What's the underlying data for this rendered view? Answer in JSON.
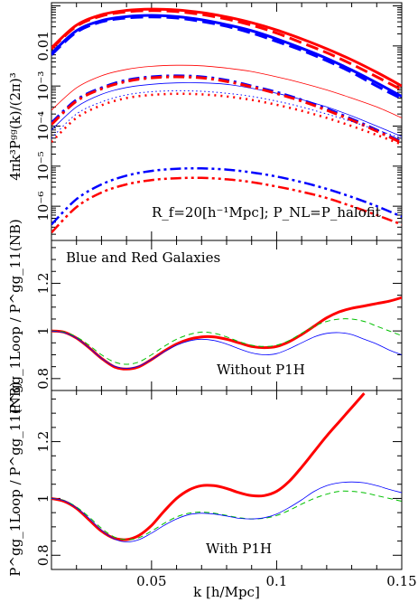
{
  "chart_data": [
    {
      "type": "line",
      "panel": "top",
      "ylabel": "4πk³Pᵍᵍ(k)/(2π)³",
      "yscale": "log",
      "xlim": [
        0.01,
        0.15
      ],
      "ylim": [
        1.4e-07,
        0.12
      ],
      "ytick_labels": [
        "10⁻⁶",
        "10⁻⁵",
        "10⁻⁴",
        "10⁻³",
        "0.01"
      ],
      "ytick_values": [
        1e-06,
        1e-05,
        0.0001,
        0.001,
        0.01
      ],
      "annotation": "R_f=20[h⁻¹Mpc]; P_NL=P_halofit",
      "series": [
        {
          "color": "#ff0000",
          "style": "solid-thick",
          "x": [
            0.01,
            0.02,
            0.03,
            0.04,
            0.05,
            0.06,
            0.07,
            0.08,
            0.09,
            0.1,
            0.11,
            0.12,
            0.13,
            0.14,
            0.15
          ],
          "y": [
            0.009,
            0.033,
            0.06,
            0.077,
            0.083,
            0.079,
            0.068,
            0.053,
            0.038,
            0.025,
            0.015,
            0.0085,
            0.0045,
            0.0022,
            0.001
          ]
        },
        {
          "color": "#ff0000",
          "style": "dashed-thick",
          "x": [
            0.01,
            0.02,
            0.03,
            0.04,
            0.05,
            0.06,
            0.07,
            0.08,
            0.09,
            0.1,
            0.11,
            0.12,
            0.13,
            0.14,
            0.15
          ],
          "y": [
            0.0085,
            0.031,
            0.056,
            0.071,
            0.076,
            0.072,
            0.061,
            0.047,
            0.033,
            0.021,
            0.012,
            0.0068,
            0.0035,
            0.0017,
            0.0008
          ]
        },
        {
          "color": "#0000ff",
          "style": "solid-thick",
          "x": [
            0.01,
            0.02,
            0.03,
            0.04,
            0.05,
            0.06,
            0.07,
            0.08,
            0.09,
            0.1,
            0.11,
            0.12,
            0.13,
            0.14,
            0.15
          ],
          "y": [
            0.0065,
            0.024,
            0.043,
            0.054,
            0.058,
            0.054,
            0.045,
            0.034,
            0.024,
            0.015,
            0.0088,
            0.0049,
            0.0025,
            0.0012,
            0.00055
          ]
        },
        {
          "color": "#0000ff",
          "style": "dashed-thick",
          "x": [
            0.01,
            0.02,
            0.03,
            0.04,
            0.05,
            0.06,
            0.07,
            0.08,
            0.09,
            0.1,
            0.11,
            0.12,
            0.13,
            0.14,
            0.15
          ],
          "y": [
            0.006,
            0.022,
            0.04,
            0.05,
            0.053,
            0.05,
            0.041,
            0.031,
            0.021,
            0.013,
            0.0078,
            0.0043,
            0.0022,
            0.001,
            0.00048
          ]
        },
        {
          "color": "#ff0000",
          "style": "solid-thin",
          "x": [
            0.01,
            0.02,
            0.03,
            0.04,
            0.05,
            0.06,
            0.07,
            0.08,
            0.09,
            0.1,
            0.11,
            0.12,
            0.13,
            0.14,
            0.15
          ],
          "y": [
            0.00025,
            0.0009,
            0.0018,
            0.0026,
            0.0031,
            0.0033,
            0.0032,
            0.0028,
            0.0023,
            0.0017,
            0.0012,
            0.0008,
            0.0005,
            0.0003,
            0.00016
          ]
        },
        {
          "color": "#0000ff",
          "style": "solid-thin",
          "x": [
            0.01,
            0.02,
            0.03,
            0.04,
            0.05,
            0.06,
            0.07,
            0.08,
            0.09,
            0.1,
            0.11,
            0.12,
            0.13,
            0.14,
            0.15
          ],
          "y": [
            8e-05,
            0.0003,
            0.00062,
            0.00092,
            0.0011,
            0.0012,
            0.0012,
            0.0011,
            0.00088,
            0.00066,
            0.00046,
            0.0003,
            0.00018,
            0.0001,
            5.5e-05
          ]
        },
        {
          "color": "#0000ff",
          "style": "dashdot-thick",
          "x": [
            0.01,
            0.02,
            0.03,
            0.04,
            0.05,
            0.06,
            0.07,
            0.08,
            0.09,
            0.1,
            0.11,
            0.12,
            0.13,
            0.14,
            0.15
          ],
          "y": [
            0.00012,
            0.00045,
            0.0009,
            0.0014,
            0.0017,
            0.0018,
            0.0017,
            0.0014,
            0.001,
            0.0007,
            0.00045,
            0.00027,
            0.00015,
            8e-05,
            4e-05
          ]
        },
        {
          "color": "#ff0000",
          "style": "dashdot-thick",
          "x": [
            0.01,
            0.02,
            0.03,
            0.04,
            0.05,
            0.06,
            0.07,
            0.08,
            0.09,
            0.1,
            0.11,
            0.12,
            0.13,
            0.14,
            0.15
          ],
          "y": [
            0.00011,
            0.00042,
            0.00085,
            0.0013,
            0.0016,
            0.0017,
            0.0016,
            0.0013,
            0.00095,
            0.00065,
            0.00042,
            0.00025,
            0.00014,
            7.5e-05,
            3.8e-05
          ]
        },
        {
          "color": "#0000ff",
          "style": "dotted-thin",
          "x": [
            0.01,
            0.02,
            0.03,
            0.04,
            0.05,
            0.06,
            0.07,
            0.08,
            0.09,
            0.1,
            0.11,
            0.12,
            0.13,
            0.14,
            0.15
          ],
          "y": [
            5e-05,
            0.0002,
            0.0004,
            0.0006,
            0.00072,
            0.00076,
            0.00074,
            0.00066,
            0.00055,
            0.00042,
            0.0003,
            0.0002,
            0.00013,
            8e-05,
            5e-05
          ]
        },
        {
          "color": "#ff0000",
          "style": "dotted-thick",
          "x": [
            0.01,
            0.02,
            0.03,
            0.04,
            0.05,
            0.06,
            0.07,
            0.08,
            0.09,
            0.1,
            0.11,
            0.12,
            0.13,
            0.14,
            0.15
          ],
          "y": [
            4e-05,
            0.00016,
            0.00033,
            0.0005,
            0.0006,
            0.00064,
            0.00062,
            0.00055,
            0.00045,
            0.00034,
            0.00024,
            0.00016,
            0.0001,
            6e-05,
            3.5e-05
          ]
        },
        {
          "color": "#0000ff",
          "style": "dashdotdot-thick",
          "x": [
            0.01,
            0.02,
            0.03,
            0.04,
            0.05,
            0.06,
            0.07,
            0.08,
            0.09,
            0.1,
            0.11,
            0.12,
            0.13,
            0.14,
            0.15
          ],
          "y": [
            3.5e-07,
            1.5e-06,
            3.5e-06,
            5.8e-06,
            7.6e-06,
            8.6e-06,
            8.8e-06,
            8.2e-06,
            7e-06,
            5.5e-06,
            4e-06,
            2.7e-06,
            1.7e-06,
            1e-06,
            5.5e-07
          ]
        },
        {
          "color": "#ff0000",
          "style": "dashdotdot-thick",
          "x": [
            0.01,
            0.02,
            0.03,
            0.04,
            0.05,
            0.06,
            0.07,
            0.08,
            0.09,
            0.1,
            0.11,
            0.12,
            0.13,
            0.14,
            0.15
          ],
          "y": [
            2.2e-07,
            9.5e-07,
            2.2e-06,
            3.5e-06,
            4.5e-06,
            5e-06,
            5.1e-06,
            4.7e-06,
            4e-06,
            3.1e-06,
            2.3e-06,
            1.6e-06,
            1e-06,
            6e-07,
            3.5e-07
          ]
        }
      ]
    },
    {
      "type": "line",
      "panel": "middle",
      "ylabel": "P^gg_1Loop / P^gg_11(NB)",
      "xlim": [
        0.01,
        0.15
      ],
      "ylim": [
        0.75,
        1.38
      ],
      "ytick_labels": [
        "0.8",
        "1",
        "1.2"
      ],
      "ytick_values": [
        0.8,
        1.0,
        1.2
      ],
      "annotation_title": "Blue and Red Galaxies",
      "annotation": "Without P1H",
      "series": [
        {
          "color": "#ff0000",
          "style": "solid-thick",
          "x": [
            0.01,
            0.015,
            0.02,
            0.025,
            0.03,
            0.035,
            0.04,
            0.045,
            0.05,
            0.055,
            0.06,
            0.065,
            0.07,
            0.075,
            0.08,
            0.085,
            0.09,
            0.095,
            0.1,
            0.105,
            0.11,
            0.115,
            0.12,
            0.125,
            0.13,
            0.135,
            0.14,
            0.145,
            0.15
          ],
          "y": [
            1.0,
            0.995,
            0.97,
            0.93,
            0.885,
            0.85,
            0.84,
            0.85,
            0.88,
            0.915,
            0.945,
            0.965,
            0.975,
            0.975,
            0.965,
            0.95,
            0.935,
            0.93,
            0.935,
            0.955,
            0.985,
            1.02,
            1.055,
            1.08,
            1.095,
            1.105,
            1.115,
            1.125,
            1.14
          ]
        },
        {
          "color": "#00c000",
          "style": "dashed-thin",
          "x": [
            0.01,
            0.015,
            0.02,
            0.025,
            0.03,
            0.035,
            0.04,
            0.045,
            0.05,
            0.055,
            0.06,
            0.065,
            0.07,
            0.075,
            0.08,
            0.085,
            0.09,
            0.095,
            0.1,
            0.105,
            0.11,
            0.115,
            0.12,
            0.125,
            0.13,
            0.135,
            0.14,
            0.145,
            0.15
          ],
          "y": [
            1.0,
            0.995,
            0.975,
            0.94,
            0.9,
            0.87,
            0.86,
            0.87,
            0.9,
            0.935,
            0.965,
            0.985,
            0.995,
            0.99,
            0.975,
            0.955,
            0.94,
            0.935,
            0.94,
            0.96,
            0.99,
            1.02,
            1.04,
            1.05,
            1.05,
            1.04,
            1.02,
            1.0,
            0.98
          ]
        },
        {
          "color": "#0000ff",
          "style": "solid-thin",
          "x": [
            0.01,
            0.015,
            0.02,
            0.025,
            0.03,
            0.035,
            0.04,
            0.045,
            0.05,
            0.055,
            0.06,
            0.065,
            0.07,
            0.075,
            0.08,
            0.085,
            0.09,
            0.095,
            0.1,
            0.105,
            0.11,
            0.115,
            0.12,
            0.125,
            0.13,
            0.135,
            0.14,
            0.145,
            0.15
          ],
          "y": [
            1.0,
            0.993,
            0.97,
            0.93,
            0.885,
            0.853,
            0.843,
            0.853,
            0.88,
            0.912,
            0.94,
            0.958,
            0.965,
            0.96,
            0.945,
            0.925,
            0.908,
            0.9,
            0.905,
            0.925,
            0.95,
            0.975,
            0.99,
            0.993,
            0.985,
            0.965,
            0.945,
            0.92,
            0.9
          ]
        }
      ]
    },
    {
      "type": "line",
      "panel": "bottom",
      "ylabel": "P^gg_1Loop / P^gg_11(NB)",
      "xlabel": "k [h/Mpc]",
      "xlim": [
        0.01,
        0.15
      ],
      "ylim": [
        0.75,
        1.38
      ],
      "xtick_labels": [
        "0.05",
        "0.1",
        "0.15"
      ],
      "xtick_values": [
        0.05,
        0.1,
        0.15
      ],
      "ytick_labels": [
        "0.8",
        "1",
        "1.2"
      ],
      "ytick_values": [
        0.8,
        1.0,
        1.2
      ],
      "annotation": "With P1H",
      "series": [
        {
          "color": "#ff0000",
          "style": "solid-thick",
          "x": [
            0.01,
            0.015,
            0.02,
            0.025,
            0.03,
            0.035,
            0.04,
            0.045,
            0.05,
            0.055,
            0.06,
            0.065,
            0.07,
            0.075,
            0.08,
            0.085,
            0.09,
            0.095,
            0.1,
            0.105,
            0.11,
            0.115,
            0.12,
            0.125,
            0.13,
            0.135
          ],
          "y": [
            1.0,
            0.99,
            0.965,
            0.925,
            0.885,
            0.86,
            0.855,
            0.87,
            0.905,
            0.955,
            1.0,
            1.03,
            1.045,
            1.045,
            1.035,
            1.02,
            1.01,
            1.01,
            1.025,
            1.06,
            1.11,
            1.165,
            1.22,
            1.27,
            1.32,
            1.37
          ]
        },
        {
          "color": "#00c000",
          "style": "dashed-thin",
          "x": [
            0.01,
            0.015,
            0.02,
            0.025,
            0.03,
            0.035,
            0.04,
            0.045,
            0.05,
            0.055,
            0.06,
            0.065,
            0.07,
            0.075,
            0.08,
            0.085,
            0.09,
            0.095,
            0.1,
            0.105,
            0.11,
            0.115,
            0.12,
            0.125,
            0.13,
            0.135,
            0.14,
            0.145,
            0.15
          ],
          "y": [
            1.0,
            0.993,
            0.97,
            0.935,
            0.895,
            0.865,
            0.855,
            0.862,
            0.885,
            0.912,
            0.935,
            0.948,
            0.952,
            0.948,
            0.94,
            0.932,
            0.928,
            0.93,
            0.94,
            0.958,
            0.98,
            1.0,
            1.015,
            1.025,
            1.025,
            1.02,
            1.01,
            1.0,
            0.99
          ]
        },
        {
          "color": "#0000ff",
          "style": "solid-thin",
          "x": [
            0.01,
            0.015,
            0.02,
            0.025,
            0.03,
            0.035,
            0.04,
            0.045,
            0.05,
            0.055,
            0.06,
            0.065,
            0.07,
            0.075,
            0.08,
            0.085,
            0.09,
            0.095,
            0.1,
            0.105,
            0.11,
            0.115,
            0.12,
            0.125,
            0.13,
            0.135,
            0.14,
            0.145,
            0.15
          ],
          "y": [
            1.0,
            0.992,
            0.967,
            0.93,
            0.888,
            0.858,
            0.847,
            0.855,
            0.878,
            0.905,
            0.928,
            0.943,
            0.948,
            0.945,
            0.938,
            0.93,
            0.928,
            0.932,
            0.945,
            0.968,
            0.995,
            1.025,
            1.045,
            1.055,
            1.058,
            1.055,
            1.045,
            1.032,
            1.02
          ]
        }
      ]
    }
  ]
}
